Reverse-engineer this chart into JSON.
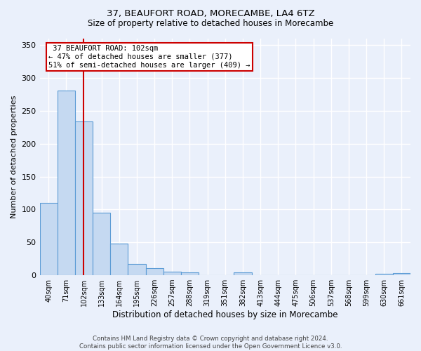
{
  "title": "37, BEAUFORT ROAD, MORECAMBE, LA4 6TZ",
  "subtitle": "Size of property relative to detached houses in Morecambe",
  "xlabel": "Distribution of detached houses by size in Morecambe",
  "ylabel": "Number of detached properties",
  "bar_labels": [
    "40sqm",
    "71sqm",
    "102sqm",
    "133sqm",
    "164sqm",
    "195sqm",
    "226sqm",
    "257sqm",
    "288sqm",
    "319sqm",
    "351sqm",
    "382sqm",
    "413sqm",
    "444sqm",
    "475sqm",
    "506sqm",
    "537sqm",
    "568sqm",
    "599sqm",
    "630sqm",
    "661sqm"
  ],
  "bar_values": [
    110,
    281,
    234,
    95,
    48,
    17,
    11,
    5,
    4,
    0,
    0,
    4,
    0,
    0,
    0,
    0,
    0,
    0,
    0,
    2,
    3
  ],
  "bar_color": "#c5d9f1",
  "bar_edgecolor": "#5b9bd5",
  "property_line_x": 2,
  "property_label": "37 BEAUFORT ROAD: 102sqm",
  "annotation_line1": "← 47% of detached houses are smaller (377)",
  "annotation_line2": "51% of semi-detached houses are larger (409) →",
  "annotation_box_color": "#ffffff",
  "annotation_box_edgecolor": "#cc0000",
  "line_color": "#cc0000",
  "ylim": [
    0,
    360
  ],
  "yticks": [
    0,
    50,
    100,
    150,
    200,
    250,
    300,
    350
  ],
  "footer": "Contains HM Land Registry data © Crown copyright and database right 2024.\nContains public sector information licensed under the Open Government Licence v3.0.",
  "bg_color": "#eaf0fb",
  "grid_color": "#ffffff"
}
